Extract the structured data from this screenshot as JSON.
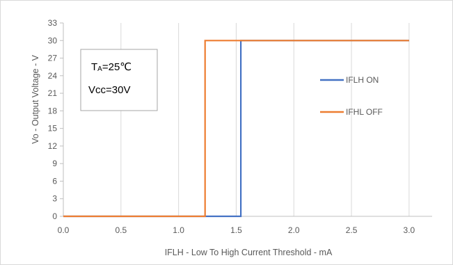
{
  "chart_data": {
    "type": "line",
    "title": "",
    "xlabel": "IFLH - Low To High Current Threshold - mA",
    "ylabel": "Vo - Output Voltage - V",
    "xlim": [
      0,
      3.2
    ],
    "ylim": [
      0,
      33
    ],
    "x_ticks": [
      "0.0",
      "0.5",
      "1.0",
      "1.5",
      "2.0",
      "2.5",
      "3.0"
    ],
    "x_tick_values": [
      0,
      0.5,
      1.0,
      1.5,
      2.0,
      2.5,
      3.0
    ],
    "y_ticks": [
      "0",
      "3",
      "6",
      "9",
      "12",
      "15",
      "18",
      "21",
      "24",
      "27",
      "30",
      "33"
    ],
    "y_tick_values": [
      0,
      3,
      6,
      9,
      12,
      15,
      18,
      21,
      24,
      27,
      30,
      33
    ],
    "grid": {
      "vertical": true,
      "horizontal": false
    },
    "legend_position": "right",
    "series": [
      {
        "name": "IFLH ON",
        "color": "#4472C4",
        "x": [
          0,
          1.54,
          1.54,
          3.0
        ],
        "y": [
          0,
          0,
          30,
          30
        ]
      },
      {
        "name": "IFHL OFF",
        "color": "#ED7D31",
        "x": [
          0,
          1.23,
          1.23,
          3.0
        ],
        "y": [
          0,
          0,
          30,
          30
        ]
      }
    ],
    "annotations": {
      "line1_main": "T",
      "line1_sub": "A",
      "line1_rest": "=25℃",
      "line2": "Vcc=30V"
    }
  }
}
